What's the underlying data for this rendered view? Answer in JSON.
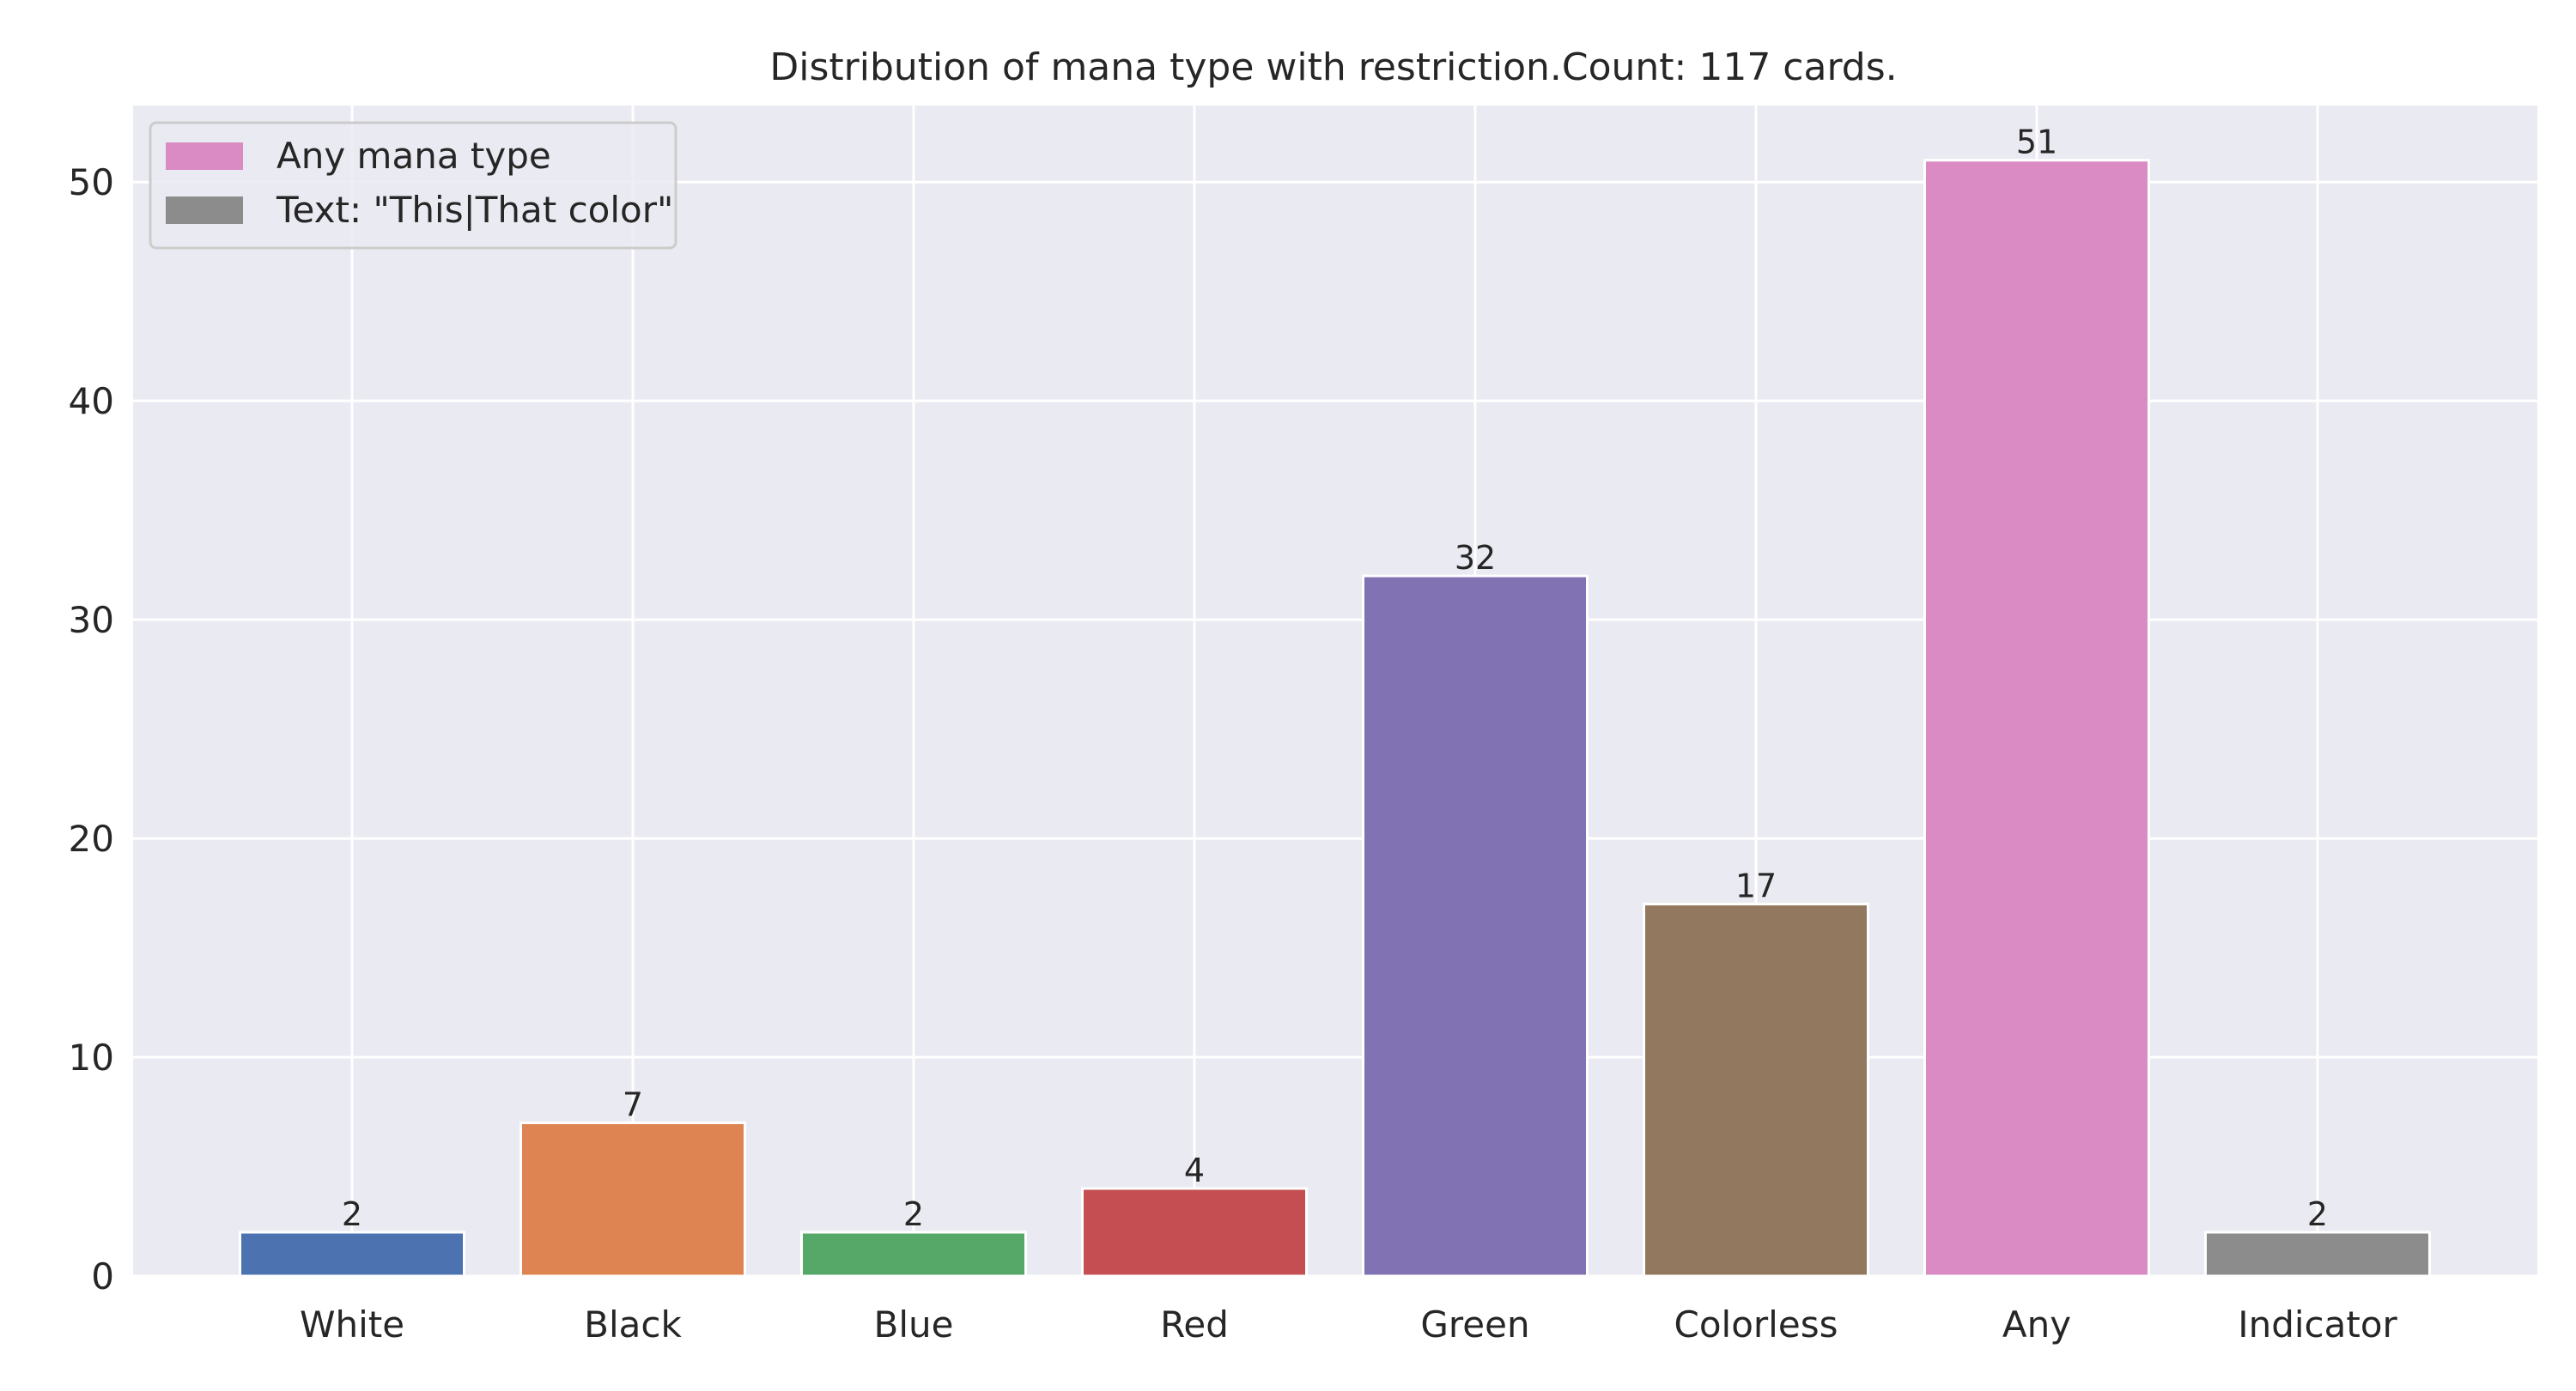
{
  "chart_data": {
    "type": "bar",
    "title": "Distribution of mana type with restriction.Count: 117 cards.",
    "xlabel": "",
    "ylabel": "",
    "categories": [
      "White",
      "Black",
      "Blue",
      "Red",
      "Green",
      "Colorless",
      "Any",
      "Indicator"
    ],
    "values": [
      2,
      7,
      2,
      4,
      32,
      17,
      51,
      2
    ],
    "data_labels": [
      "2",
      "7",
      "2",
      "4",
      "32",
      "17",
      "51",
      "2"
    ],
    "bar_colors": [
      "#4c72b0",
      "#dd8452",
      "#55a868",
      "#c44e52",
      "#8172b3",
      "#937860",
      "#da8bc3",
      "#8c8c8c"
    ],
    "ylim": [
      0,
      53.5
    ],
    "yticks": [
      0,
      10,
      20,
      30,
      40,
      50
    ],
    "grid": true,
    "background": "#eaeaf2",
    "legend": {
      "placement": "upper-left",
      "entries": [
        {
          "label": "Any mana type",
          "color": "#da8bc3"
        },
        {
          "label": "Text: \"This|That color\"",
          "color": "#8c8c8c"
        }
      ]
    }
  }
}
